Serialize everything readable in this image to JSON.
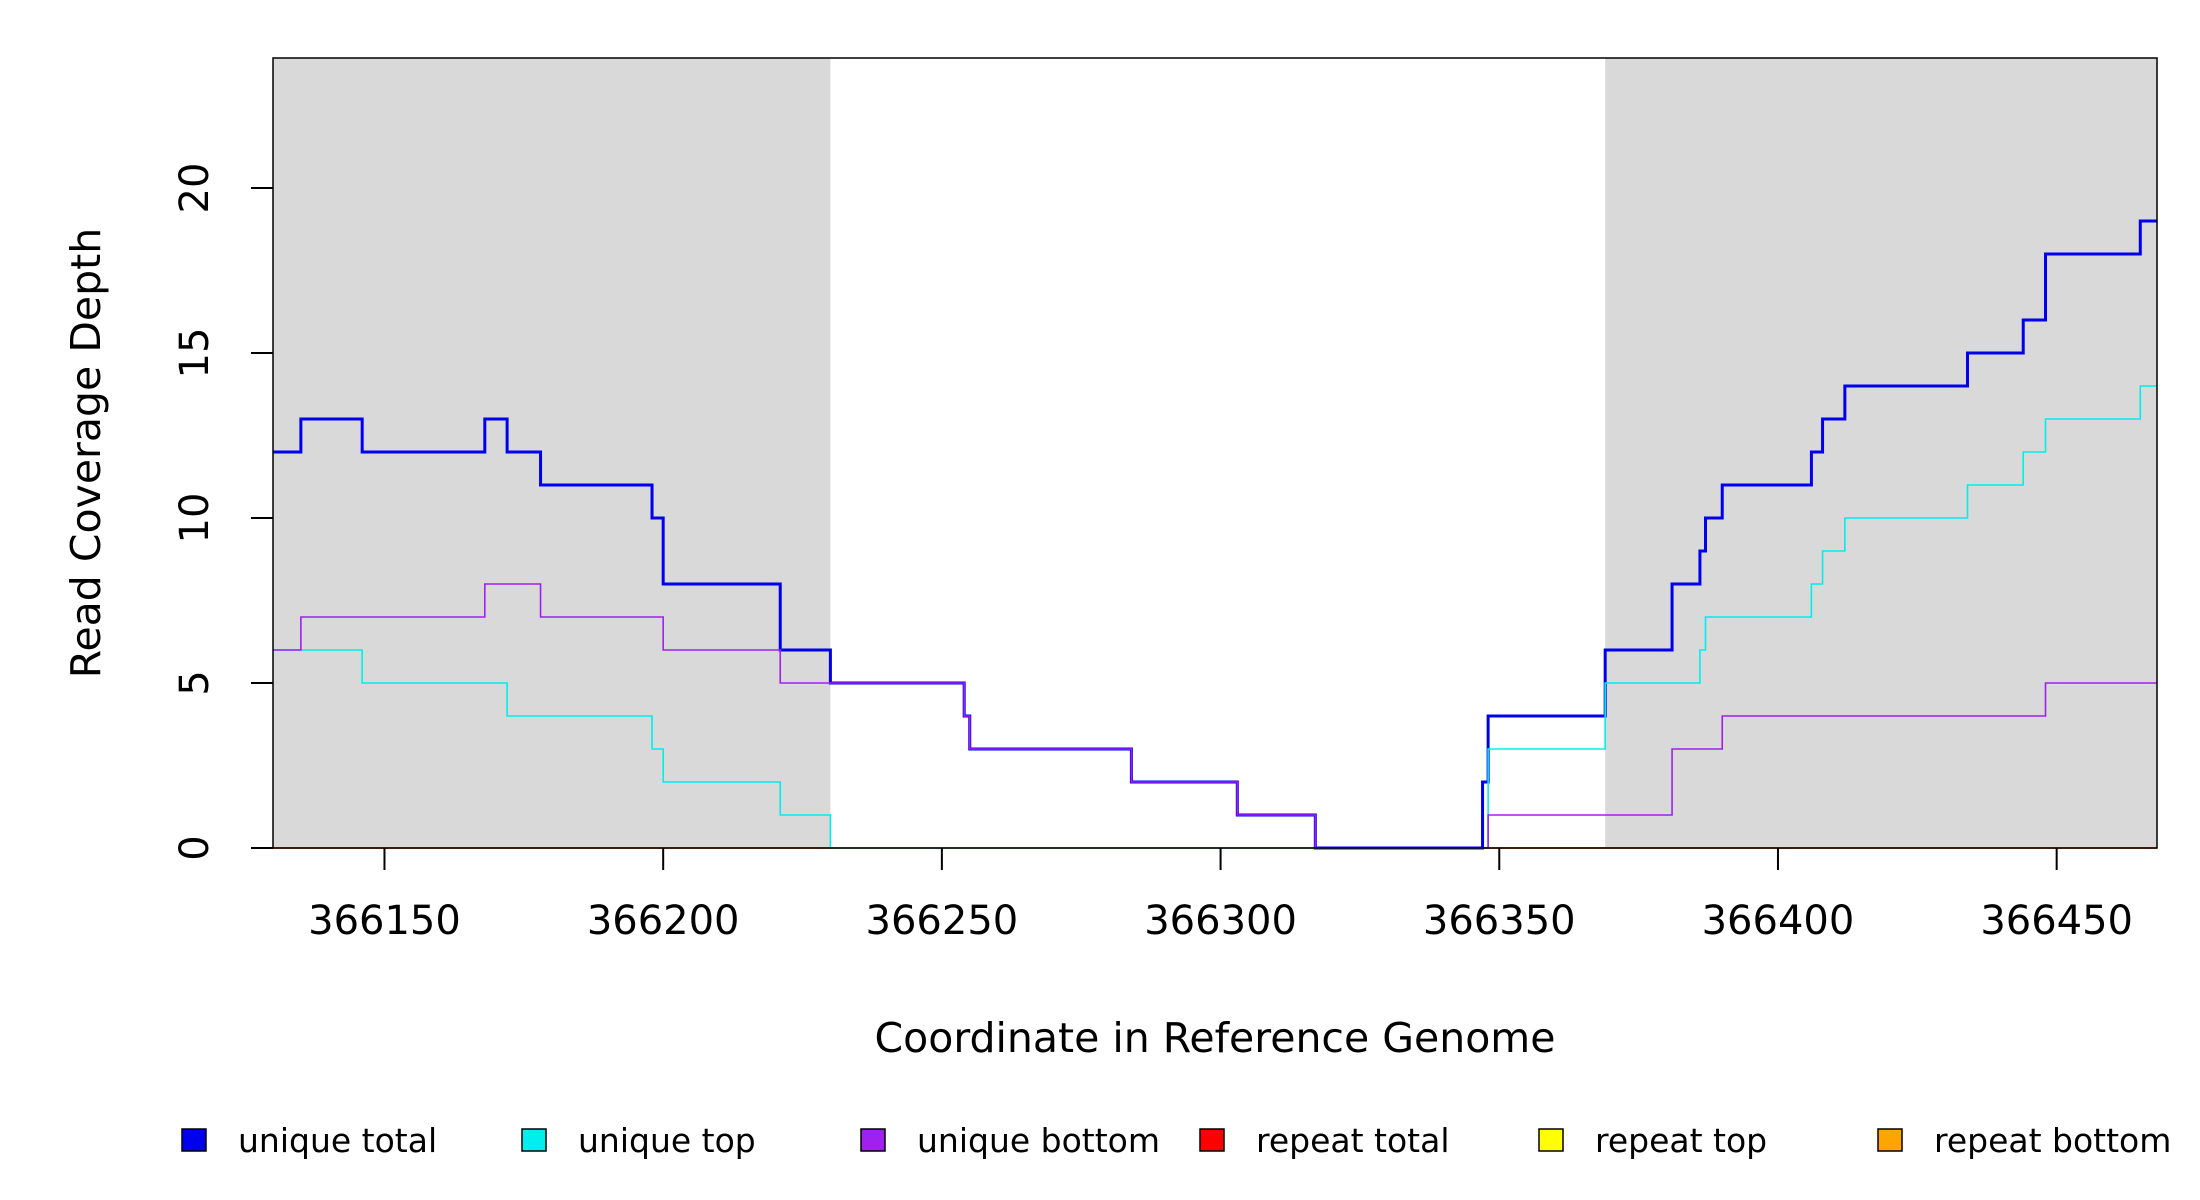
{
  "chart_data": {
    "type": "line",
    "title": "",
    "xlabel": "Coordinate in Reference Genome",
    "ylabel": "Read Coverage Depth",
    "xlim": [
      366130,
      366468
    ],
    "ylim": [
      0,
      23
    ],
    "xticks": [
      366150,
      366200,
      366250,
      366300,
      366350,
      366400,
      366450
    ],
    "yticks": [
      0,
      5,
      10,
      15,
      20
    ],
    "shaded_regions": [
      {
        "from": 366130,
        "to": 366230,
        "color": "#d9d9d9"
      },
      {
        "from": 366369,
        "to": 366468,
        "color": "#d9d9d9"
      }
    ],
    "grid": false,
    "legend_position": "bottom",
    "series": [
      {
        "name": "unique total",
        "color": "#0000ee",
        "weight": "bold",
        "steps": [
          [
            366130,
            12
          ],
          [
            366135,
            13
          ],
          [
            366146,
            12
          ],
          [
            366168,
            13
          ],
          [
            366172,
            12
          ],
          [
            366178,
            11
          ],
          [
            366198,
            10
          ],
          [
            366200,
            8
          ],
          [
            366221,
            6
          ],
          [
            366230,
            5
          ],
          [
            366254,
            4
          ],
          [
            366255,
            3
          ],
          [
            366284,
            2
          ],
          [
            366303,
            1
          ],
          [
            366317,
            0
          ],
          [
            366347,
            2
          ],
          [
            366348,
            4
          ],
          [
            366369,
            6
          ],
          [
            366381,
            8
          ],
          [
            366386,
            9
          ],
          [
            366387,
            10
          ],
          [
            366390,
            11
          ],
          [
            366406,
            12
          ],
          [
            366408,
            13
          ],
          [
            366412,
            14
          ],
          [
            366434,
            15
          ],
          [
            366444,
            16
          ],
          [
            366448,
            18
          ],
          [
            366465,
            19
          ],
          [
            366468,
            19
          ]
        ]
      },
      {
        "name": "unique top",
        "color": "#00eeee",
        "weight": "thin",
        "steps": [
          [
            366130,
            6
          ],
          [
            366146,
            5
          ],
          [
            366172,
            4
          ],
          [
            366198,
            3
          ],
          [
            366200,
            2
          ],
          [
            366221,
            1
          ],
          [
            366230,
            0
          ],
          [
            366347,
            0
          ],
          [
            366348,
            3
          ],
          [
            366369,
            5
          ],
          [
            366386,
            6
          ],
          [
            366387,
            7
          ],
          [
            366406,
            8
          ],
          [
            366408,
            9
          ],
          [
            366412,
            10
          ],
          [
            366434,
            11
          ],
          [
            366444,
            12
          ],
          [
            366448,
            13
          ],
          [
            366465,
            14
          ],
          [
            366468,
            14
          ]
        ]
      },
      {
        "name": "unique bottom",
        "color": "#a020f0",
        "weight": "thin",
        "steps": [
          [
            366130,
            6
          ],
          [
            366135,
            7
          ],
          [
            366168,
            8
          ],
          [
            366178,
            7
          ],
          [
            366200,
            6
          ],
          [
            366221,
            5
          ],
          [
            366254,
            4
          ],
          [
            366255,
            3
          ],
          [
            366284,
            2
          ],
          [
            366303,
            1
          ],
          [
            366317,
            0
          ],
          [
            366348,
            1
          ],
          [
            366381,
            3
          ],
          [
            366390,
            4
          ],
          [
            366448,
            5
          ],
          [
            366468,
            5
          ]
        ]
      },
      {
        "name": "repeat total",
        "color": "#ff0000",
        "weight": "thin",
        "steps": [
          [
            366130,
            0
          ],
          [
            366468,
            0
          ]
        ]
      },
      {
        "name": "repeat top",
        "color": "#ffff00",
        "weight": "thin",
        "steps": [
          [
            366130,
            0
          ],
          [
            366468,
            0
          ]
        ]
      },
      {
        "name": "repeat bottom",
        "color": "#ffa500",
        "weight": "thin",
        "steps": [
          [
            366130,
            0
          ],
          [
            366468,
            0
          ]
        ]
      }
    ]
  }
}
